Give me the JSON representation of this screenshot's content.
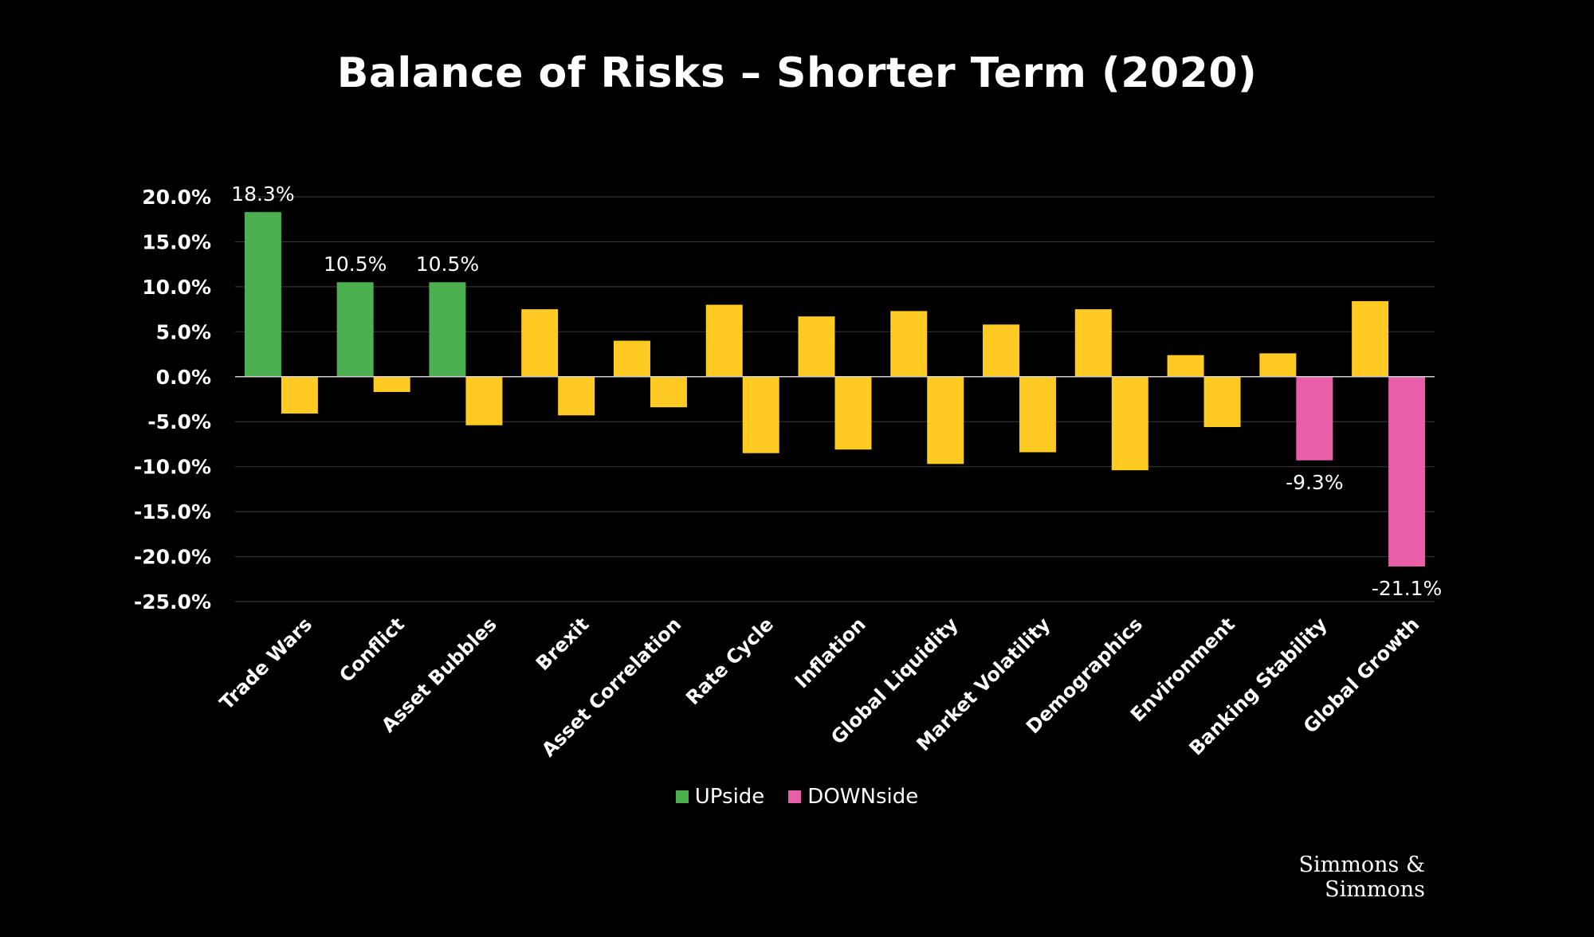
{
  "chart_data": {
    "type": "bar",
    "title": "Balance of Risks – Shorter Term (2020)",
    "categories": [
      "Trade Wars",
      "Conflict",
      "Asset Bubbles",
      "Brexit",
      "Asset Correlation",
      "Rate Cycle",
      "Inflation",
      "Global Liquidity",
      "Market Volatility",
      "Demographics",
      "Environment",
      "Banking Stability",
      "Global Growth"
    ],
    "series": [
      {
        "values": [
          18.3,
          10.5,
          10.5,
          7.5,
          4.0,
          8.0,
          6.7,
          7.3,
          5.8,
          7.5,
          2.4,
          2.6,
          8.4
        ]
      },
      {
        "values": [
          -4.1,
          -1.7,
          -5.4,
          -4.3,
          -3.4,
          -8.5,
          -8.1,
          -9.7,
          -8.4,
          -10.4,
          -5.6,
          -9.3,
          -21.1
        ]
      }
    ],
    "ylim": [
      -25,
      20
    ],
    "yticks": [
      "20.0%",
      "15.0%",
      "10.0%",
      "5.0%",
      "0.0%",
      "-5.0%",
      "-10.0%",
      "-15.0%",
      "-20.0%",
      "-25.0%"
    ],
    "data_labels": [
      {
        "series": 0,
        "index": 0,
        "text": "18.3%"
      },
      {
        "series": 0,
        "index": 1,
        "text": "10.5%"
      },
      {
        "series": 0,
        "index": 2,
        "text": "10.5%"
      },
      {
        "series": 1,
        "index": 11,
        "text": "-9.3%"
      },
      {
        "series": 1,
        "index": 12,
        "text": "-21.1%"
      }
    ],
    "highlight": {
      "upside_indices": [
        0,
        1,
        2
      ],
      "downside_indices": [
        11,
        12
      ]
    },
    "colors": {
      "upside": "#4caf50",
      "downside": "#e85fa8",
      "neutral": "#ffcb22",
      "gridline": "#333333",
      "zero_line": "#cfcfcf"
    },
    "grid": true
  },
  "legend": [
    {
      "label": "UPside",
      "color": "#4caf50"
    },
    {
      "label": "DOWNside",
      "color": "#e85fa8"
    }
  ],
  "brand": "Simmons & Simmons"
}
